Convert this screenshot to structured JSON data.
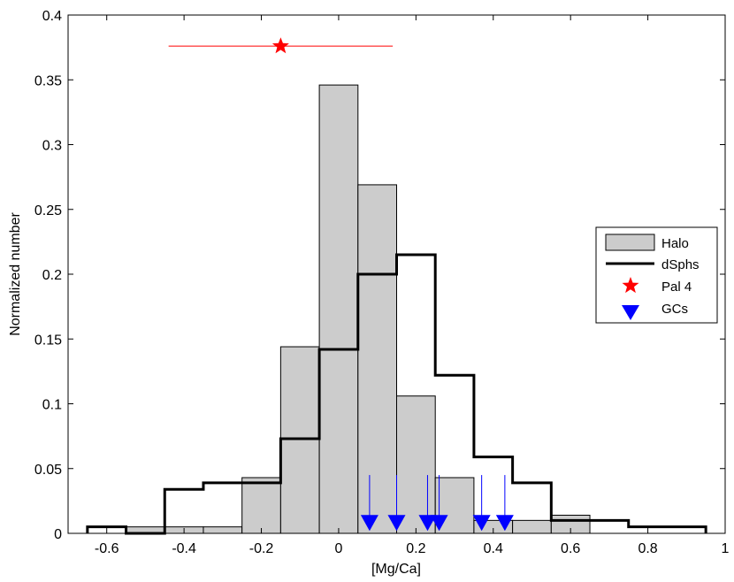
{
  "chart_data": {
    "type": "histogram",
    "xlabel": "[Mg/Ca]",
    "ylabel": "Normalized number",
    "xlim": [
      -0.7,
      1.0
    ],
    "ylim": [
      0,
      0.4
    ],
    "x_ticks": [
      -0.6,
      -0.4,
      -0.2,
      0,
      0.2,
      0.4,
      0.6,
      0.8,
      1
    ],
    "x_tick_labels": [
      "-0.6",
      "-0.4",
      "-0.2",
      "0",
      "0.2",
      "0.4",
      "0.6",
      "0.8",
      "1"
    ],
    "y_ticks": [
      0,
      0.05,
      0.1,
      0.15,
      0.2,
      0.25,
      0.3,
      0.35,
      0.4
    ],
    "y_tick_labels": [
      "0",
      "0.05",
      "0.1",
      "0.15",
      "0.2",
      "0.25",
      "0.3",
      "0.35",
      "0.4"
    ],
    "grid": false,
    "legend_position": "right",
    "series": [
      {
        "name": "Halo",
        "kind": "bar",
        "color": "#cccccc",
        "bin_edges": [
          -0.55,
          -0.45,
          -0.35,
          -0.25,
          -0.15,
          -0.05,
          0.05,
          0.15,
          0.25,
          0.35,
          0.45,
          0.55,
          0.65
        ],
        "values": [
          0.005,
          0.005,
          0.005,
          0.043,
          0.144,
          0.346,
          0.269,
          0.106,
          0.043,
          0.01,
          0.01,
          0.014
        ]
      },
      {
        "name": "dSphs",
        "kind": "step",
        "color": "#000000",
        "bin_edges": [
          -0.65,
          -0.55,
          -0.45,
          -0.35,
          -0.25,
          -0.15,
          -0.05,
          0.05,
          0.15,
          0.25,
          0.35,
          0.45,
          0.55,
          0.65,
          0.75,
          0.85,
          0.95
        ],
        "values": [
          0.005,
          0.0,
          0.034,
          0.039,
          0.039,
          0.073,
          0.142,
          0.2,
          0.215,
          0.122,
          0.059,
          0.039,
          0.01,
          0.01,
          0.005,
          0.005
        ]
      },
      {
        "name": "Pal 4",
        "kind": "point",
        "color": "#ff0000",
        "marker": "star",
        "x": -0.15,
        "y": 0.376,
        "xerr_low": -0.44,
        "xerr_high": 0.14
      },
      {
        "name": "GCs",
        "kind": "point",
        "color": "#0000ff",
        "marker": "triangle-down",
        "x": [
          0.08,
          0.15,
          0.23,
          0.26,
          0.37,
          0.43
        ],
        "y": [
          0.008,
          0.008,
          0.008,
          0.008,
          0.008,
          0.008
        ],
        "y_line_top": 0.045
      }
    ]
  }
}
